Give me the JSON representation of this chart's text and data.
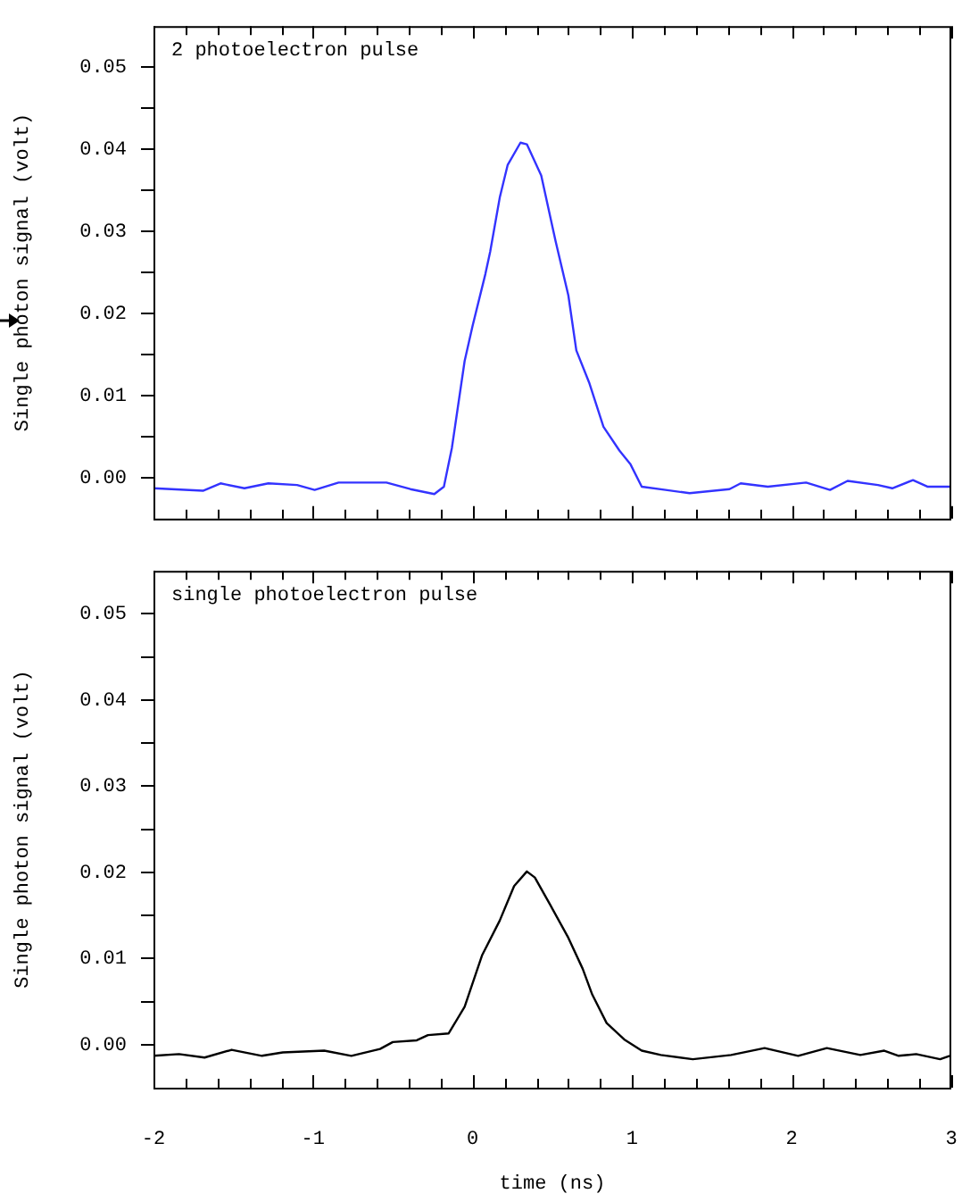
{
  "chart_data": [
    {
      "type": "line",
      "ylabel": "Single photon signal (volt)",
      "annotations": [
        "2 photoelectron pulse"
      ],
      "tick_labels": "y",
      "color": "#3333ff",
      "x": [
        -2,
        -1.69,
        -1.58,
        -1.43,
        -1.28,
        -1.1,
        -0.99,
        -0.84,
        -0.54,
        -0.39,
        -0.24,
        -0.18,
        -0.13,
        -0.05,
        0.0,
        0.08,
        0.11,
        0.17,
        0.22,
        0.3,
        0.34,
        0.43,
        0.52,
        0.6,
        0.65,
        0.73,
        0.82,
        0.92,
        0.99,
        1.06,
        1.21,
        1.36,
        1.61,
        1.68,
        1.85,
        2.09,
        2.24,
        2.35,
        2.54,
        2.63,
        2.76,
        2.85,
        2.99
      ],
      "values": [
        -0.0013,
        -0.0016,
        -0.0007,
        -0.0013,
        -0.0007,
        -0.0009,
        -0.0015,
        -0.0006,
        -0.0006,
        -0.0014,
        -0.002,
        -0.0011,
        0.0036,
        0.0142,
        0.0185,
        0.0248,
        0.0275,
        0.0341,
        0.0381,
        0.0408,
        0.0406,
        0.0368,
        0.0288,
        0.0222,
        0.0155,
        0.0116,
        0.0062,
        0.0033,
        0.0016,
        -0.0011,
        -0.0015,
        -0.0019,
        -0.0014,
        -0.0007,
        -0.0011,
        -0.0006,
        -0.0015,
        -0.0004,
        -0.0009,
        -0.0013,
        -0.0003,
        -0.0011,
        -0.0011
      ],
      "xlim": [
        -2,
        3
      ],
      "ylim": [
        -0.005,
        0.055
      ],
      "xticks": [
        -2,
        -1,
        0,
        1,
        2,
        3
      ],
      "yticks": [
        {
          "value": 0,
          "label": "0.00"
        },
        {
          "value": 0.01,
          "label": "0.01"
        },
        {
          "value": 0.02,
          "label": "0.02"
        },
        {
          "value": 0.03,
          "label": "0.03"
        },
        {
          "value": 0.04,
          "label": "0.04"
        },
        {
          "value": 0.05,
          "label": "0.05"
        },
        {
          "value": 0.005,
          "label": null
        },
        {
          "value": 0.015,
          "label": null
        },
        {
          "value": 0.025,
          "label": null
        },
        {
          "value": 0.035,
          "label": null
        },
        {
          "value": 0.045,
          "label": null
        }
      ]
    },
    {
      "type": "line",
      "ylabel": "Single photon signal (volt)",
      "xlabel": "time (ns)",
      "annotations": [
        "single photoelectron pulse"
      ],
      "color": "#000000",
      "x": [
        -2,
        -1.84,
        -1.68,
        -1.51,
        -1.32,
        -1.19,
        -0.93,
        -0.76,
        -0.58,
        -0.5,
        -0.35,
        -0.28,
        -0.15,
        -0.05,
        0.06,
        0.17,
        0.26,
        0.34,
        0.39,
        0.49,
        0.6,
        0.69,
        0.75,
        0.84,
        0.95,
        1.06,
        1.18,
        1.38,
        1.62,
        1.83,
        2.04,
        2.22,
        2.43,
        2.58,
        2.67,
        2.78,
        2.93,
        2.99
      ],
      "values": [
        -0.0013,
        -0.0011,
        -0.0015,
        -0.0006,
        -0.0013,
        -0.0009,
        -0.0007,
        -0.0013,
        -0.0005,
        0.0003,
        0.0005,
        0.0011,
        0.0013,
        0.0044,
        0.0104,
        0.0144,
        0.0184,
        0.0201,
        0.0194,
        0.0161,
        0.0124,
        0.0088,
        0.0058,
        0.0025,
        0.0006,
        -0.0007,
        -0.0012,
        -0.0017,
        -0.0012,
        -0.0004,
        -0.0013,
        -0.0004,
        -0.0012,
        -0.0007,
        -0.0013,
        -0.0011,
        -0.0017,
        -0.0013
      ],
      "xlim": [
        -2,
        3
      ],
      "ylim": [
        -0.005,
        0.055
      ],
      "xticks": [
        -2,
        -1,
        0,
        1,
        2,
        3
      ],
      "yticks": [
        {
          "value": 0,
          "label": "0.00"
        },
        {
          "value": 0.01,
          "label": "0.01"
        },
        {
          "value": 0.02,
          "label": "0.02"
        },
        {
          "value": 0.03,
          "label": "0.03"
        },
        {
          "value": 0.04,
          "label": "0.04"
        },
        {
          "value": 0.05,
          "label": "0.05"
        },
        {
          "value": 0.005,
          "label": null
        },
        {
          "value": 0.015,
          "label": null
        },
        {
          "value": 0.025,
          "label": null
        },
        {
          "value": 0.035,
          "label": null
        },
        {
          "value": 0.045,
          "label": null
        }
      ]
    }
  ]
}
